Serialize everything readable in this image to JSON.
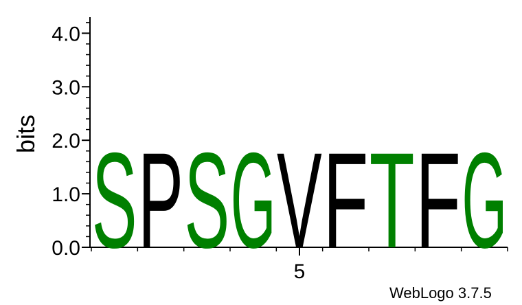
{
  "chart_data": {
    "type": "sequence-logo",
    "ylabel": "bits",
    "ylim": [
      0,
      4.3
    ],
    "y_ticks": [
      {
        "value": 0,
        "label": "0.0"
      },
      {
        "value": 1,
        "label": "1.0"
      },
      {
        "value": 2,
        "label": "2.0"
      },
      {
        "value": 3,
        "label": "3.0"
      },
      {
        "value": 4,
        "label": "4.0"
      }
    ],
    "x_labeled_ticks": [
      {
        "position": 5,
        "label": "5"
      }
    ],
    "positions": [
      {
        "position": 1,
        "letter": "S",
        "bits": 1.83,
        "color": "#008000"
      },
      {
        "position": 2,
        "letter": "P",
        "bits": 1.83,
        "color": "#000000"
      },
      {
        "position": 3,
        "letter": "S",
        "bits": 1.83,
        "color": "#008000"
      },
      {
        "position": 4,
        "letter": "G",
        "bits": 1.83,
        "color": "#008000"
      },
      {
        "position": 5,
        "letter": "V",
        "bits": 1.83,
        "color": "#000000"
      },
      {
        "position": 6,
        "letter": "F",
        "bits": 1.83,
        "color": "#000000"
      },
      {
        "position": 7,
        "letter": "T",
        "bits": 1.83,
        "color": "#008000"
      },
      {
        "position": 8,
        "letter": "F",
        "bits": 1.83,
        "color": "#000000"
      },
      {
        "position": 9,
        "letter": "G",
        "bits": 1.83,
        "color": "#008000"
      }
    ]
  },
  "credit": "WebLogo 3.7.5"
}
